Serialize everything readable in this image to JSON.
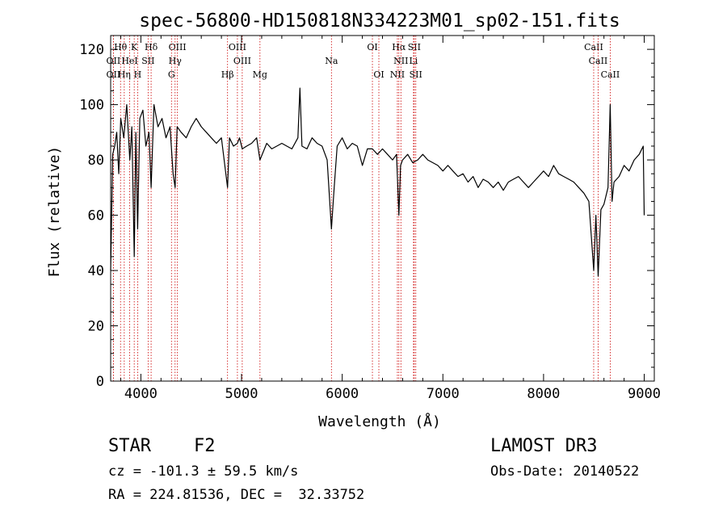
{
  "chart_data": {
    "type": "line",
    "title": "spec-56800-HD150818N334223M01_sp02-151.fits",
    "xlabel": "Wavelength (Å)",
    "ylabel": "Flux (relative)",
    "xlim": [
      3700,
      9100
    ],
    "ylim": [
      0,
      125
    ],
    "xticks": [
      4000,
      5000,
      6000,
      7000,
      8000,
      9000
    ],
    "xtick_labels": [
      "4000",
      "5000",
      "6000",
      "7000",
      "8000",
      "9000"
    ],
    "yticks": [
      0,
      20,
      40,
      60,
      80,
      100,
      120
    ],
    "ytick_labels": [
      "0",
      "20",
      "40",
      "60",
      "80",
      "100",
      "120"
    ],
    "series": [
      {
        "name": "flux",
        "x": [
          3700,
          3720,
          3740,
          3760,
          3780,
          3800,
          3830,
          3860,
          3890,
          3910,
          3934,
          3950,
          3968,
          3990,
          4020,
          4050,
          4080,
          4102,
          4130,
          4170,
          4210,
          4250,
          4290,
          4320,
          4340,
          4360,
          4400,
          4450,
          4500,
          4550,
          4600,
          4650,
          4700,
          4750,
          4800,
          4861,
          4880,
          4920,
          4959,
          4980,
          5007,
          5050,
          5100,
          5150,
          5183,
          5250,
          5300,
          5350,
          5400,
          5450,
          5500,
          5560,
          5580,
          5600,
          5650,
          5700,
          5750,
          5800,
          5850,
          5893,
          5920,
          5950,
          6000,
          6050,
          6100,
          6150,
          6200,
          6250,
          6300,
          6350,
          6400,
          6450,
          6500,
          6540,
          6563,
          6580,
          6600,
          6650,
          6700,
          6750,
          6800,
          6850,
          6900,
          6950,
          7000,
          7050,
          7100,
          7150,
          7200,
          7250,
          7300,
          7350,
          7400,
          7450,
          7500,
          7550,
          7600,
          7650,
          7700,
          7750,
          7800,
          7850,
          7900,
          7950,
          8000,
          8050,
          8100,
          8150,
          8200,
          8250,
          8300,
          8350,
          8400,
          8450,
          8498,
          8520,
          8542,
          8570,
          8600,
          8640,
          8662,
          8680,
          8700,
          8750,
          8800,
          8850,
          8900,
          8950,
          8990,
          9000
        ],
        "y": [
          40,
          82,
          85,
          90,
          75,
          95,
          88,
          100,
          80,
          92,
          45,
          90,
          55,
          95,
          98,
          85,
          90,
          70,
          100,
          92,
          95,
          88,
          92,
          75,
          70,
          92,
          90,
          88,
          92,
          95,
          92,
          90,
          88,
          86,
          88,
          70,
          88,
          85,
          86,
          88,
          84,
          85,
          86,
          88,
          80,
          86,
          84,
          85,
          86,
          85,
          84,
          88,
          106,
          85,
          84,
          88,
          86,
          85,
          80,
          55,
          70,
          85,
          88,
          84,
          86,
          85,
          78,
          84,
          84,
          82,
          84,
          82,
          80,
          82,
          60,
          78,
          80,
          82,
          79,
          80,
          82,
          80,
          79,
          78,
          76,
          78,
          76,
          74,
          75,
          72,
          74,
          70,
          73,
          72,
          70,
          72,
          69,
          72,
          73,
          74,
          72,
          70,
          72,
          74,
          76,
          74,
          78,
          75,
          74,
          73,
          72,
          70,
          68,
          65,
          40,
          60,
          38,
          62,
          64,
          70,
          100,
          65,
          72,
          74,
          78,
          76,
          80,
          82,
          85,
          60
        ]
      }
    ],
    "line_markers": [
      {
        "label": "Hθ",
        "x": 3798,
        "row": 1
      },
      {
        "label": "K",
        "x": 3934,
        "row": 1
      },
      {
        "label": "Hδ",
        "x": 4102,
        "row": 1
      },
      {
        "label": "OIII",
        "x": 4363,
        "row": 1
      },
      {
        "label": "OIII",
        "x": 4959,
        "row": 1
      },
      {
        "label": "OI",
        "x": 6300,
        "row": 1
      },
      {
        "label": "Hα",
        "x": 6563,
        "row": 1
      },
      {
        "label": "SII",
        "x": 6716,
        "row": 1
      },
      {
        "label": "CaII",
        "x": 8498,
        "row": 1
      },
      {
        "label": "OII",
        "x": 3727,
        "row": 2
      },
      {
        "label": "HeI",
        "x": 3889,
        "row": 2
      },
      {
        "label": "SII",
        "x": 4072,
        "row": 2
      },
      {
        "label": "Hγ",
        "x": 4340,
        "row": 2
      },
      {
        "label": "OIII",
        "x": 5007,
        "row": 2
      },
      {
        "label": "Na",
        "x": 5893,
        "row": 2
      },
      {
        "label": "NII",
        "x": 6583,
        "row": 2
      },
      {
        "label": "Li",
        "x": 6708,
        "row": 2
      },
      {
        "label": "CaII",
        "x": 8542,
        "row": 2
      },
      {
        "label": "OII",
        "x": 3727,
        "row": 3
      },
      {
        "label": "Hη",
        "x": 3835,
        "row": 3
      },
      {
        "label": "H",
        "x": 3968,
        "row": 3
      },
      {
        "label": "G",
        "x": 4304,
        "row": 3
      },
      {
        "label": "Hβ",
        "x": 4861,
        "row": 3
      },
      {
        "label": "Mg",
        "x": 5183,
        "row": 3
      },
      {
        "label": "OI",
        "x": 6364,
        "row": 3
      },
      {
        "label": "NII",
        "x": 6548,
        "row": 3
      },
      {
        "label": "SII",
        "x": 6731,
        "row": 3
      },
      {
        "label": "CaII",
        "x": 8662,
        "row": 3
      }
    ],
    "colors": {
      "line": "#000000",
      "marker": "#cc0000",
      "axes": "#000000"
    }
  },
  "info": {
    "object_type": "STAR",
    "subclass": "F2",
    "survey": "LAMOST DR3",
    "redshift": "cz = -101.3 ± 59.5 km/s",
    "obs_date": "Obs-Date: 20140522",
    "coords": "RA = 224.81536, DEC =  32.33752"
  }
}
